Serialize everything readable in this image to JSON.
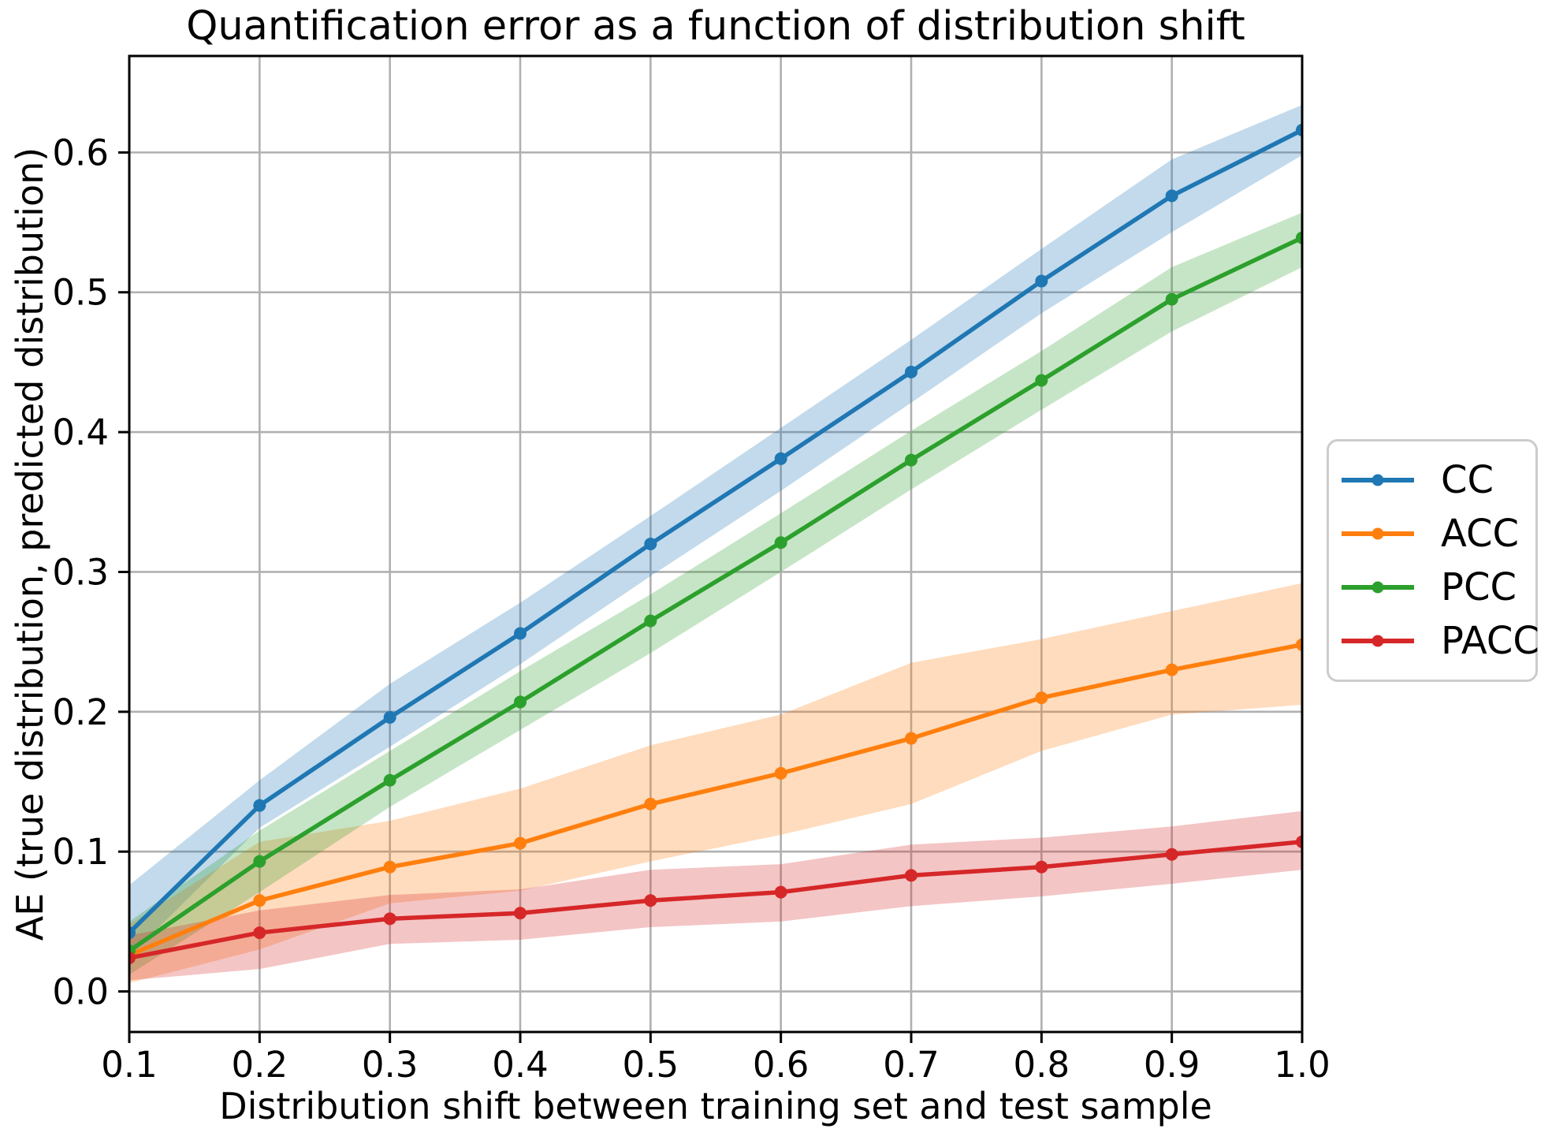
{
  "chart_data": {
    "type": "line",
    "title": "Quantification error as a function of distribution shift",
    "xlabel": "Distribution shift between training set and test sample",
    "ylabel": "AE (true distribution, predicted distribution)",
    "x": [
      0.1,
      0.2,
      0.3,
      0.4,
      0.5,
      0.6,
      0.7,
      0.8,
      0.9,
      1.0
    ],
    "xlim": [
      0.1,
      1.0
    ],
    "ylim": [
      -0.029,
      0.669
    ],
    "xticks": [
      0.1,
      0.2,
      0.3,
      0.4,
      0.5,
      0.6,
      0.7,
      0.8,
      0.9,
      1.0
    ],
    "xtick_labels": [
      "0.1",
      "0.2",
      "0.3",
      "0.4",
      "0.5",
      "0.6",
      "0.7",
      "0.8",
      "0.9",
      "1.0"
    ],
    "yticks": [
      0.0,
      0.1,
      0.2,
      0.3,
      0.4,
      0.5,
      0.6
    ],
    "ytick_labels": [
      "0.0",
      "0.1",
      "0.2",
      "0.3",
      "0.4",
      "0.5",
      "0.6"
    ],
    "grid": true,
    "grid_color": "#b0b0b0",
    "band_alpha": 0.27,
    "legend_position": "outside-center-right",
    "series": [
      {
        "name": "CC",
        "color": "#1f77b4",
        "values": [
          0.042,
          0.133,
          0.196,
          0.256,
          0.32,
          0.381,
          0.443,
          0.508,
          0.569,
          0.616
        ],
        "band_lower": [
          0.025,
          0.117,
          0.175,
          0.234,
          0.297,
          0.358,
          0.421,
          0.485,
          0.543,
          0.598
        ],
        "band_upper": [
          0.076,
          0.151,
          0.22,
          0.278,
          0.34,
          0.403,
          0.466,
          0.531,
          0.595,
          0.634
        ]
      },
      {
        "name": "ACC",
        "color": "#ff7f0e",
        "values": [
          0.026,
          0.065,
          0.089,
          0.106,
          0.134,
          0.156,
          0.181,
          0.21,
          0.23,
          0.248
        ],
        "band_lower": [
          0.006,
          0.03,
          0.063,
          0.072,
          0.093,
          0.112,
          0.134,
          0.172,
          0.198,
          0.205
        ],
        "band_upper": [
          0.048,
          0.107,
          0.122,
          0.145,
          0.176,
          0.198,
          0.235,
          0.252,
          0.272,
          0.292
        ]
      },
      {
        "name": "PCC",
        "color": "#2ca02c",
        "values": [
          0.029,
          0.093,
          0.151,
          0.207,
          0.265,
          0.321,
          0.38,
          0.437,
          0.495,
          0.539
        ],
        "band_lower": [
          0.012,
          0.071,
          0.132,
          0.187,
          0.242,
          0.3,
          0.359,
          0.416,
          0.472,
          0.518
        ],
        "band_upper": [
          0.05,
          0.115,
          0.172,
          0.229,
          0.284,
          0.342,
          0.401,
          0.458,
          0.518,
          0.557
        ]
      },
      {
        "name": "PACC",
        "color": "#d62728",
        "values": [
          0.024,
          0.042,
          0.052,
          0.056,
          0.065,
          0.071,
          0.083,
          0.089,
          0.098,
          0.107
        ],
        "band_lower": [
          0.008,
          0.016,
          0.034,
          0.037,
          0.046,
          0.05,
          0.061,
          0.068,
          0.077,
          0.087
        ],
        "band_upper": [
          0.04,
          0.058,
          0.069,
          0.073,
          0.087,
          0.091,
          0.105,
          0.11,
          0.118,
          0.129
        ]
      }
    ]
  }
}
